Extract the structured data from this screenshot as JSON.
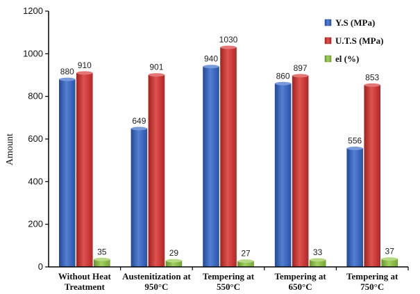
{
  "chart_data": {
    "type": "bar",
    "title": "",
    "xlabel": "",
    "ylabel": "Amount",
    "ylim": [
      0,
      1200
    ],
    "yticks": [
      0,
      200,
      400,
      600,
      800,
      1000,
      1200
    ],
    "grid": false,
    "legend_position": "top-right",
    "categories": [
      [
        "Without Heat",
        "Treatment"
      ],
      [
        "Austenitization at",
        "950°C"
      ],
      [
        "Tempering at",
        "550°C"
      ],
      [
        "Tempering at",
        "650°C"
      ],
      [
        "Tempering at",
        "750°C"
      ]
    ],
    "series": [
      {
        "name": "Y.S (MPa)",
        "color": "#2f63c8",
        "values": [
          880,
          649,
          940,
          860,
          556
        ]
      },
      {
        "name": "U.T.S (MPa)",
        "color": "#d62d2a",
        "values": [
          910,
          901,
          1030,
          897,
          853
        ]
      },
      {
        "name": "el (%)",
        "color": "#8dc63f",
        "values": [
          35,
          29,
          27,
          33,
          37
        ]
      }
    ]
  }
}
